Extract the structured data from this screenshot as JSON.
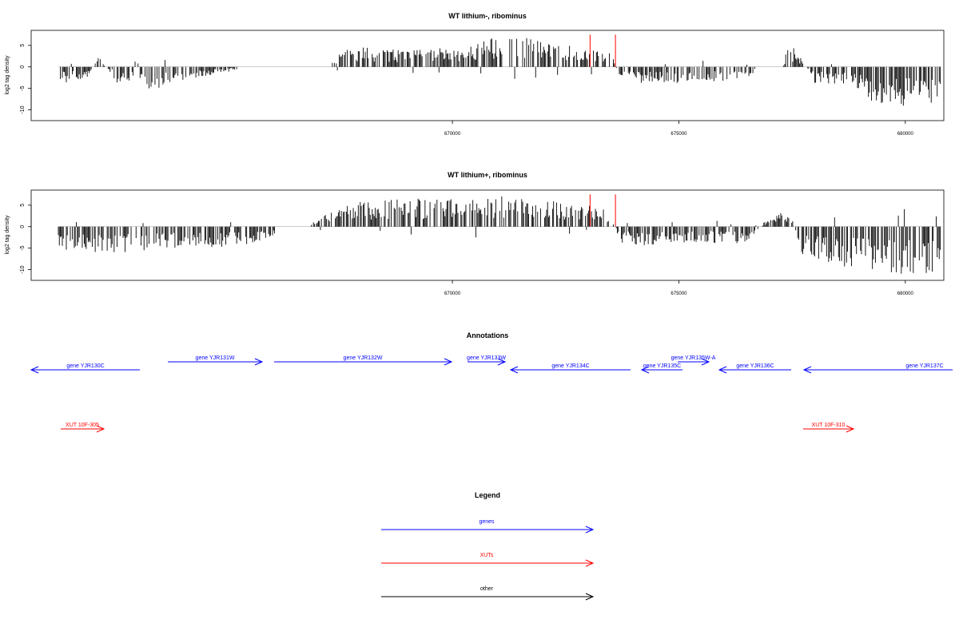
{
  "chart_data": [
    {
      "type": "bar",
      "title": "WT lithium-, ribominus",
      "xlabel": "",
      "ylabel": "log2 tag density",
      "xlim": [
        660700,
        680850
      ],
      "ylim": [
        -12.5,
        8.5
      ],
      "x_ticks": [
        670000,
        675000,
        680000
      ],
      "x_tick_labels": [
        "670000",
        "675000",
        "680000"
      ],
      "y_ticks": [
        5,
        0,
        -5,
        -10
      ],
      "y_tick_labels": [
        "5",
        "0",
        "-5",
        "-10"
      ],
      "grid": false,
      "profile": [
        {
          "x": 661300,
          "y": -3
        },
        {
          "x": 661900,
          "y": -2.5
        },
        {
          "x": 662200,
          "y": 2
        },
        {
          "x": 662600,
          "y": -3
        },
        {
          "x": 663400,
          "y": -4
        },
        {
          "x": 664400,
          "y": -2
        },
        {
          "x": 665600,
          "y": 0
        },
        {
          "x": 667300,
          "y": 0
        },
        {
          "x": 667500,
          "y": 3
        },
        {
          "x": 668000,
          "y": 3.5
        },
        {
          "x": 669000,
          "y": 3
        },
        {
          "x": 670000,
          "y": 3.5
        },
        {
          "x": 670700,
          "y": 5
        },
        {
          "x": 671500,
          "y": 5.5
        },
        {
          "x": 672500,
          "y": 4
        },
        {
          "x": 673000,
          "y": 4
        },
        {
          "x": 673500,
          "y": 3
        },
        {
          "x": 673700,
          "y": -3
        },
        {
          "x": 674500,
          "y": -3
        },
        {
          "x": 675500,
          "y": -3
        },
        {
          "x": 676500,
          "y": -2
        },
        {
          "x": 676900,
          "y": 0
        },
        {
          "x": 677300,
          "y": 0
        },
        {
          "x": 677400,
          "y": 4
        },
        {
          "x": 677600,
          "y": 3
        },
        {
          "x": 677800,
          "y": 0
        },
        {
          "x": 678000,
          "y": -3
        },
        {
          "x": 678800,
          "y": -3
        },
        {
          "x": 679200,
          "y": -6
        },
        {
          "x": 679800,
          "y": -7
        },
        {
          "x": 680400,
          "y": -8
        },
        {
          "x": 680800,
          "y": -7
        }
      ],
      "gaps": [
        [
          665700,
          667300
        ],
        [
          676700,
          677250
        ]
      ],
      "red_marks": [
        {
          "x": 673040,
          "y": 7.5
        },
        {
          "x": 673600,
          "y": 7.5
        }
      ]
    },
    {
      "type": "bar",
      "title": "WT lithium+, ribominus",
      "xlabel": "",
      "ylabel": "log2 tag density",
      "xlim": [
        660700,
        680850
      ],
      "ylim": [
        -12.5,
        8.5
      ],
      "x_ticks": [
        670000,
        675000,
        680000
      ],
      "x_tick_labels": [
        "670000",
        "675000",
        "680000"
      ],
      "y_ticks": [
        5,
        0,
        -5,
        -10
      ],
      "y_tick_labels": [
        "5",
        "0",
        "-5",
        "-10"
      ],
      "grid": false,
      "profile": [
        {
          "x": 661300,
          "y": -4
        },
        {
          "x": 662500,
          "y": -5
        },
        {
          "x": 663500,
          "y": -4
        },
        {
          "x": 664500,
          "y": -4
        },
        {
          "x": 665600,
          "y": -3
        },
        {
          "x": 666800,
          "y": 0
        },
        {
          "x": 667300,
          "y": 3
        },
        {
          "x": 668000,
          "y": 4.5
        },
        {
          "x": 669000,
          "y": 5
        },
        {
          "x": 670000,
          "y": 5
        },
        {
          "x": 671000,
          "y": 5.5
        },
        {
          "x": 672000,
          "y": 5
        },
        {
          "x": 673000,
          "y": 4
        },
        {
          "x": 673500,
          "y": 3
        },
        {
          "x": 673700,
          "y": -3
        },
        {
          "x": 674500,
          "y": -3.5
        },
        {
          "x": 675500,
          "y": -3
        },
        {
          "x": 676500,
          "y": -3
        },
        {
          "x": 676900,
          "y": 1
        },
        {
          "x": 677300,
          "y": 3
        },
        {
          "x": 677500,
          "y": 2
        },
        {
          "x": 677700,
          "y": -5
        },
        {
          "x": 678500,
          "y": -7
        },
        {
          "x": 679500,
          "y": -8
        },
        {
          "x": 680400,
          "y": -9
        },
        {
          "x": 680800,
          "y": -8
        }
      ],
      "gaps": [
        [
          666100,
          666800
        ]
      ],
      "red_marks": [
        {
          "x": 673040,
          "y": 7.5
        },
        {
          "x": 673600,
          "y": 7.5
        }
      ]
    }
  ],
  "annotations": {
    "title": "Annotations",
    "genes": [
      {
        "label": "gene YJR130C",
        "strand": "-",
        "row": 1
      },
      {
        "label": "gene YJR131W",
        "strand": "+",
        "row": 0
      },
      {
        "label": "gene YJR132W",
        "strand": "+",
        "row": 0
      },
      {
        "label": "gene YJR133W",
        "strand": "+",
        "row": 0
      },
      {
        "label": "gene YJR134C",
        "strand": "-",
        "row": 1
      },
      {
        "label": "gene YJR135C",
        "strand": "-",
        "row": 1
      },
      {
        "label": "gene YJR135W-A",
        "strand": "+",
        "row": 0
      },
      {
        "label": "gene YJR136C",
        "strand": "-",
        "row": 1
      },
      {
        "label": "gene YJR137C",
        "strand": "-",
        "row": 1
      }
    ],
    "xuts": [
      {
        "label": "XUT 10F-305",
        "strand": "+"
      },
      {
        "label": "XUT 10F-310",
        "strand": "+"
      }
    ]
  },
  "legend": {
    "title": "Legend",
    "items": [
      {
        "label": "genes",
        "color": "#0000ff"
      },
      {
        "label": "XUTs",
        "color": "#ff0000"
      },
      {
        "label": "other",
        "color": "#000000"
      }
    ]
  }
}
